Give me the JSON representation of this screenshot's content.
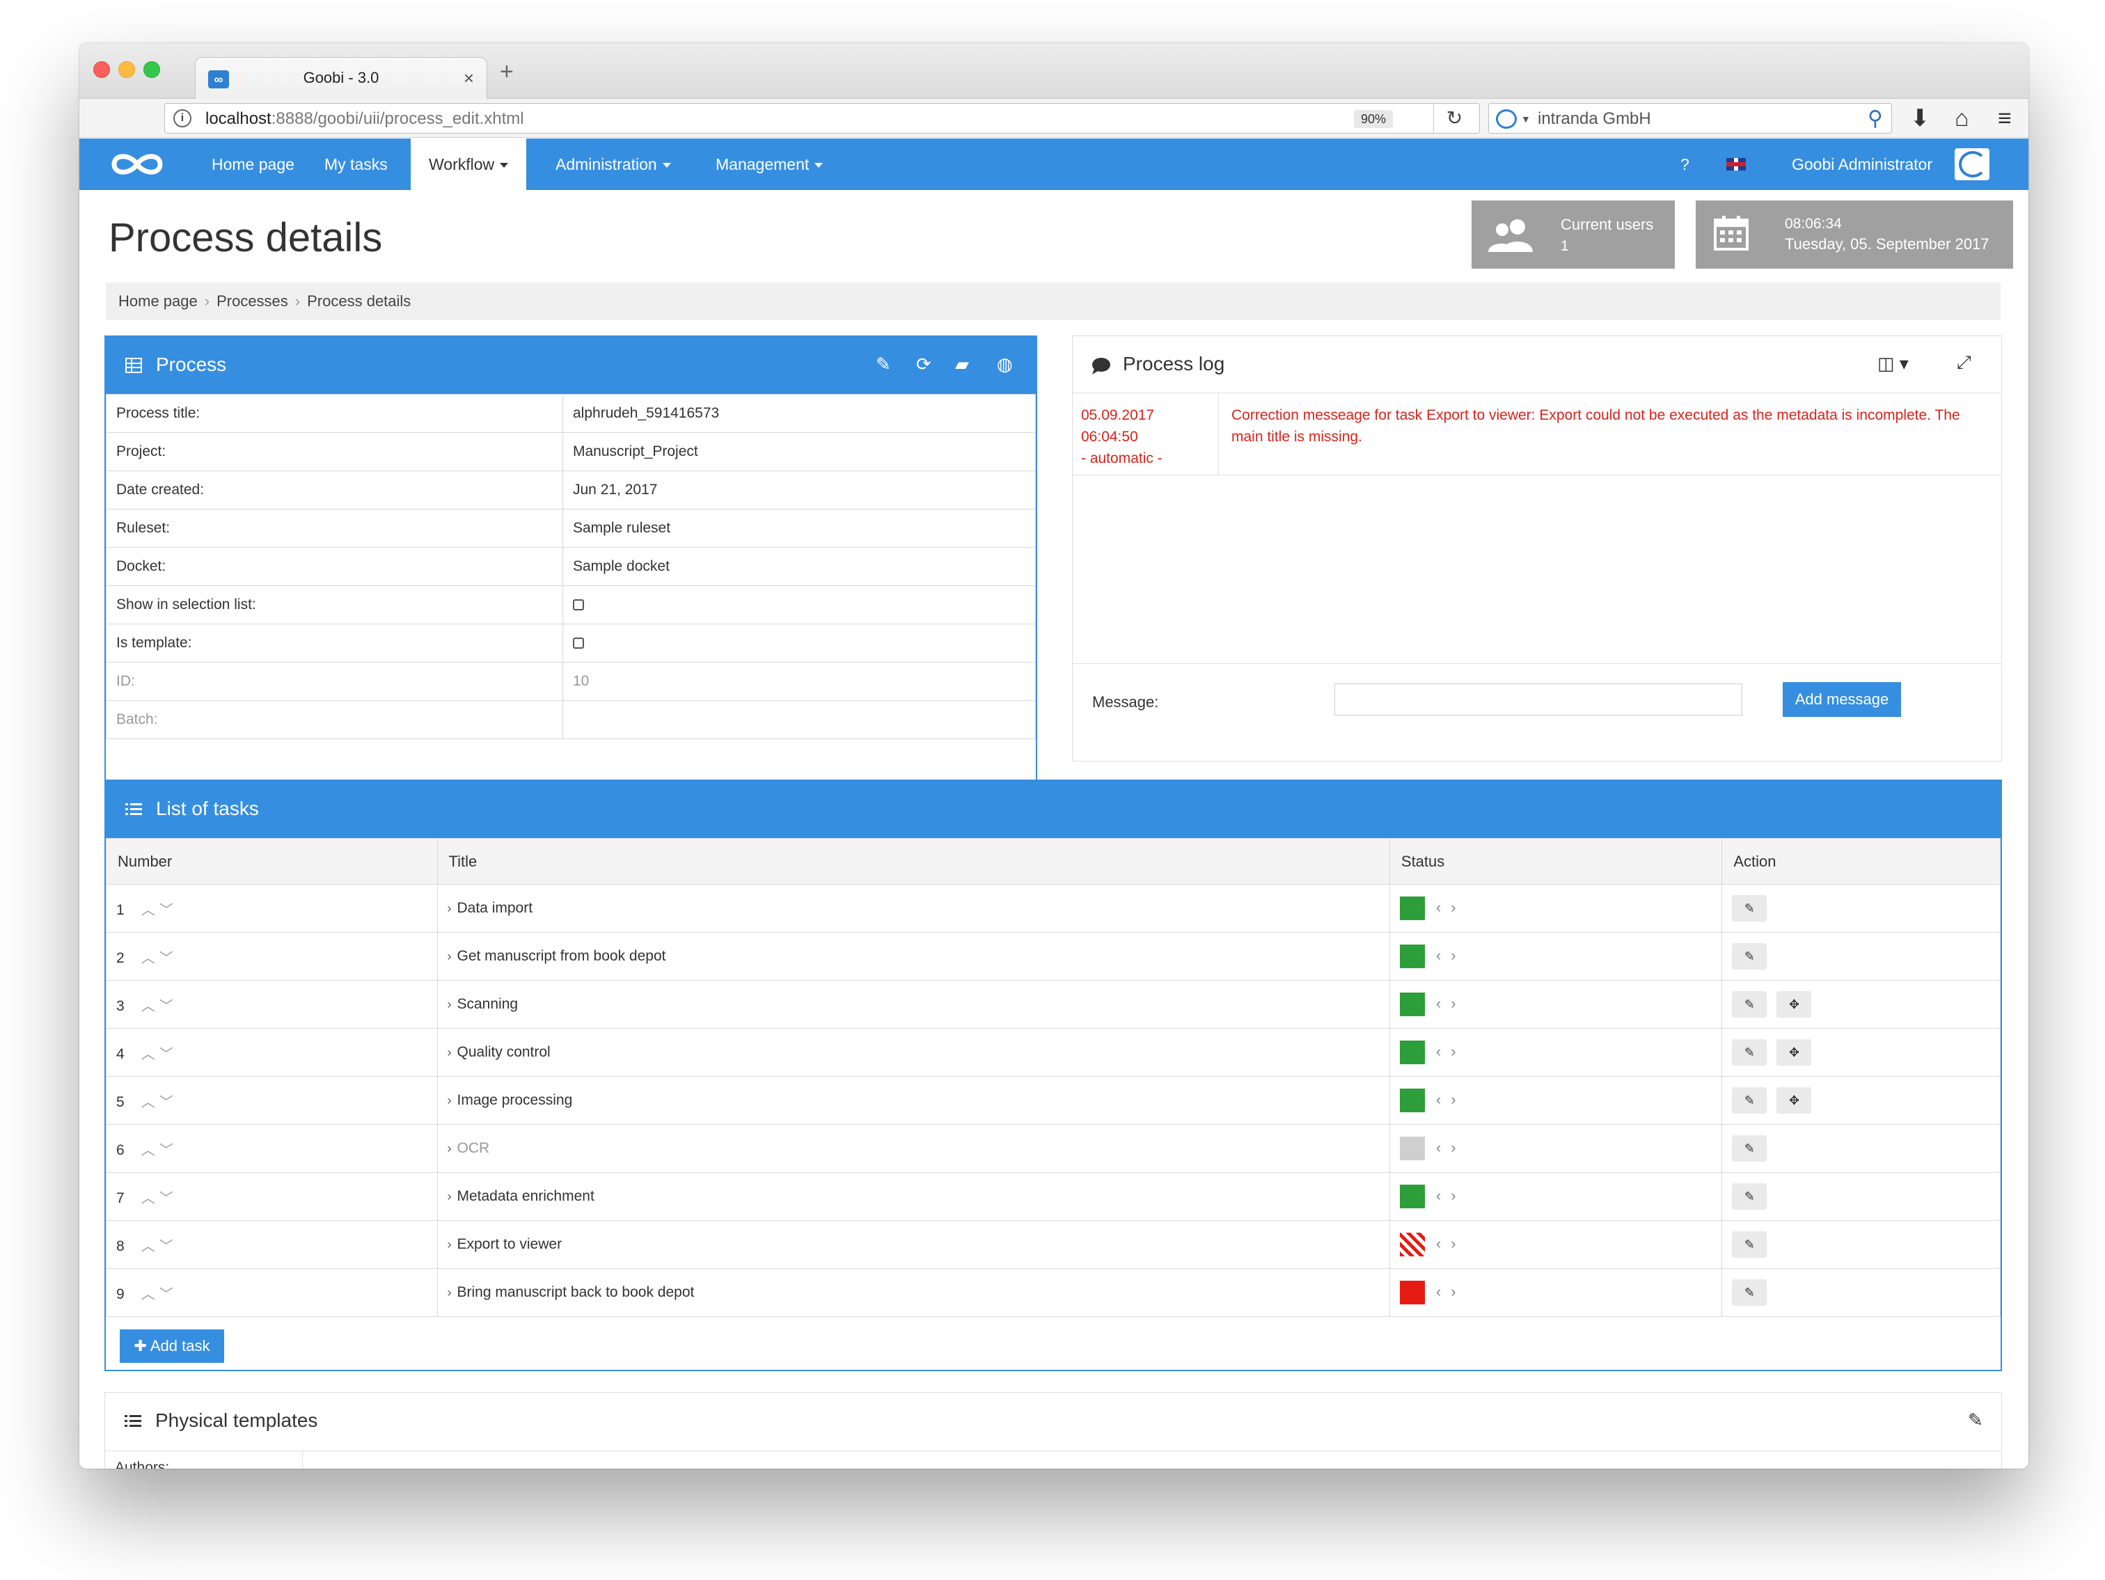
{
  "browser": {
    "tab_title": "Goobi - 3.0",
    "tab_favicon": "∞",
    "tab_close": "×",
    "new_tab": "+",
    "url_host": "localhost",
    "url_path": ":8888/goobi/uii/process_edit.xhtml",
    "zoom": "90%",
    "search_text": "intranda GmbH",
    "icons": [
      "info-icon",
      "reload-icon",
      "search-icon",
      "download-icon",
      "home-icon",
      "menu-icon"
    ]
  },
  "nav": {
    "items": [
      {
        "label": "Home page",
        "dropdown": false,
        "active": false
      },
      {
        "label": "My tasks",
        "dropdown": false,
        "active": false
      },
      {
        "label": "Workflow",
        "dropdown": true,
        "active": true
      },
      {
        "label": "Administration",
        "dropdown": true,
        "active": false
      },
      {
        "label": "Management",
        "dropdown": true,
        "active": false
      }
    ],
    "help": "?",
    "user": "Goobi Administrator",
    "accent": "#368ee0"
  },
  "page": {
    "title": "Process details",
    "widgets": {
      "users_label": "Current users",
      "users_value": "1",
      "time": "08:06:34",
      "date": "Tuesday, 05. September 2017"
    },
    "breadcrumb": [
      "Home page",
      "Processes",
      "Process details"
    ]
  },
  "process_box": {
    "title": "Process",
    "rows": [
      {
        "label": "Process title:",
        "value": "alphrudeh_591416573",
        "muted": false,
        "checkbox": false
      },
      {
        "label": "Project:",
        "value": "Manuscript_Project",
        "muted": false,
        "checkbox": false
      },
      {
        "label": "Date created:",
        "value": "Jun 21, 2017",
        "muted": false,
        "checkbox": false
      },
      {
        "label": "Ruleset:",
        "value": "Sample ruleset",
        "muted": false,
        "checkbox": false
      },
      {
        "label": "Docket:",
        "value": "Sample docket",
        "muted": false,
        "checkbox": false
      },
      {
        "label": "Show in selection list:",
        "value": "",
        "muted": false,
        "checkbox": true
      },
      {
        "label": "Is template:",
        "value": "",
        "muted": false,
        "checkbox": true
      },
      {
        "label": "ID:",
        "value": "10",
        "muted": true,
        "checkbox": false
      },
      {
        "label": "Batch:",
        "value": "",
        "muted": true,
        "checkbox": false
      }
    ]
  },
  "process_log": {
    "title": "Process log",
    "entry": {
      "date": "05.09.2017",
      "time": "06:04:50",
      "origin": "- automatic -",
      "text": "Correction messeage for task Export to viewer: Export could not be executed as the metadata is incomplete. The main title is missing."
    },
    "message_label": "Message:",
    "message_value": "",
    "add_message": "Add message",
    "error_color": "#d9231c"
  },
  "task_list": {
    "title": "List of tasks",
    "columns": [
      "Number",
      "Title",
      "Status",
      "Action"
    ],
    "tasks": [
      {
        "number": "1",
        "title": "Data import",
        "status": "done",
        "plugin": false
      },
      {
        "number": "2",
        "title": "Get manuscript from book depot",
        "status": "done",
        "plugin": false
      },
      {
        "number": "3",
        "title": "Scanning",
        "status": "done",
        "plugin": true
      },
      {
        "number": "4",
        "title": "Quality control",
        "status": "done",
        "plugin": true
      },
      {
        "number": "5",
        "title": "Image processing",
        "status": "done",
        "plugin": true
      },
      {
        "number": "6",
        "title": "OCR",
        "status": "locked",
        "plugin": false
      },
      {
        "number": "7",
        "title": "Metadata enrichment",
        "status": "done",
        "plugin": false
      },
      {
        "number": "8",
        "title": "Export to viewer",
        "status": "error-hatched",
        "plugin": false
      },
      {
        "number": "9",
        "title": "Bring manuscript back to book depot",
        "status": "error",
        "plugin": false
      }
    ],
    "add_task": "Add task",
    "status_colors": {
      "done": "#2e9e3a",
      "locked": "#cfcfcf",
      "error": "#e61b12"
    }
  },
  "physical_templates": {
    "title": "Physical templates",
    "first_label": "Authors:"
  }
}
